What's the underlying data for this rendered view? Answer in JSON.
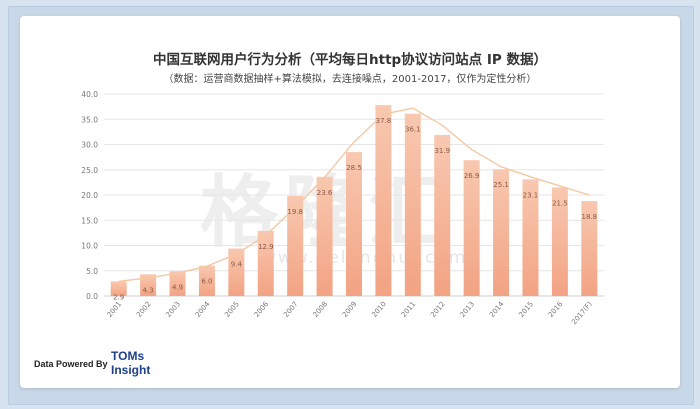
{
  "chart_data": {
    "type": "bar",
    "title": "中国互联网用户行为分析（平均每日http协议访问站点 IP 数据）",
    "subtitle": "（数据：运营商数据抽样+算法模拟，去连接噪点，2001-2017，仅作为定性分析）",
    "xlabel": "",
    "ylabel": "",
    "ylim": [
      0,
      40
    ],
    "yticks": [
      "0.0",
      "5.0",
      "10.0",
      "15.0",
      "20.0",
      "25.0",
      "30.0",
      "35.0",
      "40.0"
    ],
    "grid": true,
    "categories": [
      "2001",
      "2002",
      "2003",
      "2004",
      "2005",
      "2006",
      "2007",
      "2008",
      "2009",
      "2010",
      "2011",
      "2012",
      "2013",
      "2014",
      "2015",
      "2016",
      "2017(F)"
    ],
    "values": [
      2.9,
      4.3,
      4.9,
      6.0,
      9.4,
      12.9,
      19.8,
      23.6,
      28.5,
      37.8,
      36.1,
      31.9,
      26.9,
      25.1,
      23.1,
      21.5,
      18.8
    ],
    "value_labels": [
      "2.9",
      "4.3",
      "4.9",
      "6.0",
      "9.4",
      "12.9",
      "19.8",
      "23.6",
      "28.5",
      "37.8",
      "36.1",
      "31.9",
      "26.9",
      "25.1",
      "23.1",
      "21.5",
      "18.8"
    ],
    "trend": [
      2.9,
      3.6,
      4.5,
      5.9,
      8.3,
      12.0,
      17.5,
      23.5,
      30.5,
      36.0,
      37.2,
      33.8,
      29.0,
      25.6,
      23.6,
      21.8,
      20.0
    ],
    "bar_color": "#f2a383",
    "bar_top_color": "#f8c8b0",
    "trend_color": "#f3c9a3"
  },
  "watermark": {
    "text": "格隆汇",
    "url": "www.gelonghui.com"
  },
  "footer": {
    "label": "Data Powered By",
    "brand_line1": "TOMs",
    "brand_line2": "Insight"
  }
}
